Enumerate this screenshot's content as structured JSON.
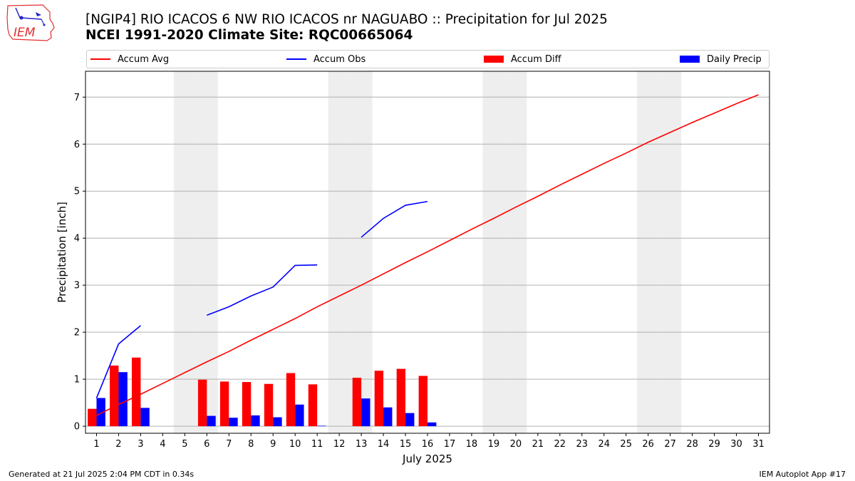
{
  "header": {
    "title": "[NGIP4] RIO ICACOS 6 NW RIO ICACOS nr NAGUABO :: Precipitation for Jul 2025",
    "subtitle": "NCEI 1991-2020 Climate Site: RQC00665064",
    "logo_text": "IEM"
  },
  "footer": {
    "generated": "Generated at 21 Jul 2025 2:04 PM CDT in 0.34s",
    "app": "IEM Autoplot App #17"
  },
  "colors": {
    "avg": "#ff0000",
    "obs": "#0000ff",
    "diff": "#ff0000",
    "daily": "#0000ff",
    "weekend": "#eeeeee",
    "grid": "#b0b0b0"
  },
  "chart_data": {
    "type": "bar",
    "xlabel": "July 2025",
    "ylabel": "Precipitation [inch]",
    "xlim": [
      0.5,
      31.5
    ],
    "ylim": [
      -0.15,
      7.55
    ],
    "yticks": [
      0,
      1,
      2,
      3,
      4,
      5,
      6,
      7
    ],
    "grid": true,
    "legend_position": "top",
    "weekend_days": [
      5,
      6,
      12,
      13,
      19,
      20,
      26,
      27
    ],
    "days": [
      1,
      2,
      3,
      4,
      5,
      6,
      7,
      8,
      9,
      10,
      11,
      12,
      13,
      14,
      15,
      16,
      17,
      18,
      19,
      20,
      21,
      22,
      23,
      24,
      25,
      26,
      27,
      28,
      29,
      30,
      31
    ],
    "series": [
      {
        "name": "Accum Avg",
        "kind": "line",
        "x": [
          1,
          2,
          3,
          4,
          5,
          6,
          7,
          8,
          9,
          10,
          11,
          12,
          13,
          14,
          15,
          16,
          17,
          18,
          19,
          20,
          21,
          22,
          23,
          24,
          25,
          26,
          27,
          28,
          29,
          30,
          31
        ],
        "values": [
          0.23,
          0.46,
          0.68,
          0.91,
          1.14,
          1.37,
          1.59,
          1.83,
          2.06,
          2.29,
          2.54,
          2.77,
          3.0,
          3.24,
          3.48,
          3.71,
          3.95,
          4.19,
          4.42,
          4.66,
          4.89,
          5.13,
          5.36,
          5.59,
          5.81,
          6.04,
          6.25,
          6.46,
          6.66,
          6.86,
          7.05
        ]
      },
      {
        "name": "Accum Obs",
        "kind": "line",
        "segments": [
          {
            "x": [
              1,
              2,
              3
            ],
            "values": [
              0.6,
              1.75,
              2.14
            ]
          },
          {
            "x": [
              6,
              7,
              8,
              9,
              10,
              11
            ],
            "values": [
              2.36,
              2.54,
              2.77,
              2.96,
              3.42,
              3.43
            ]
          },
          {
            "x": [
              13,
              14,
              15,
              16
            ],
            "values": [
              4.02,
              4.42,
              4.7,
              4.78
            ]
          }
        ]
      },
      {
        "name": "Accum Diff",
        "kind": "bar",
        "x": [
          1,
          2,
          3,
          6,
          7,
          8,
          9,
          10,
          11,
          13,
          14,
          15,
          16
        ],
        "values": [
          0.37,
          1.29,
          1.46,
          0.99,
          0.95,
          0.94,
          0.9,
          1.13,
          0.89,
          1.03,
          1.18,
          1.22,
          1.07
        ]
      },
      {
        "name": "Daily Precip",
        "kind": "bar",
        "x": [
          1,
          2,
          3,
          6,
          7,
          8,
          9,
          10,
          11,
          13,
          14,
          15,
          16
        ],
        "values": [
          0.6,
          1.15,
          0.39,
          0.22,
          0.18,
          0.23,
          0.19,
          0.46,
          0.01,
          0.59,
          0.4,
          0.28,
          0.08
        ]
      }
    ]
  }
}
